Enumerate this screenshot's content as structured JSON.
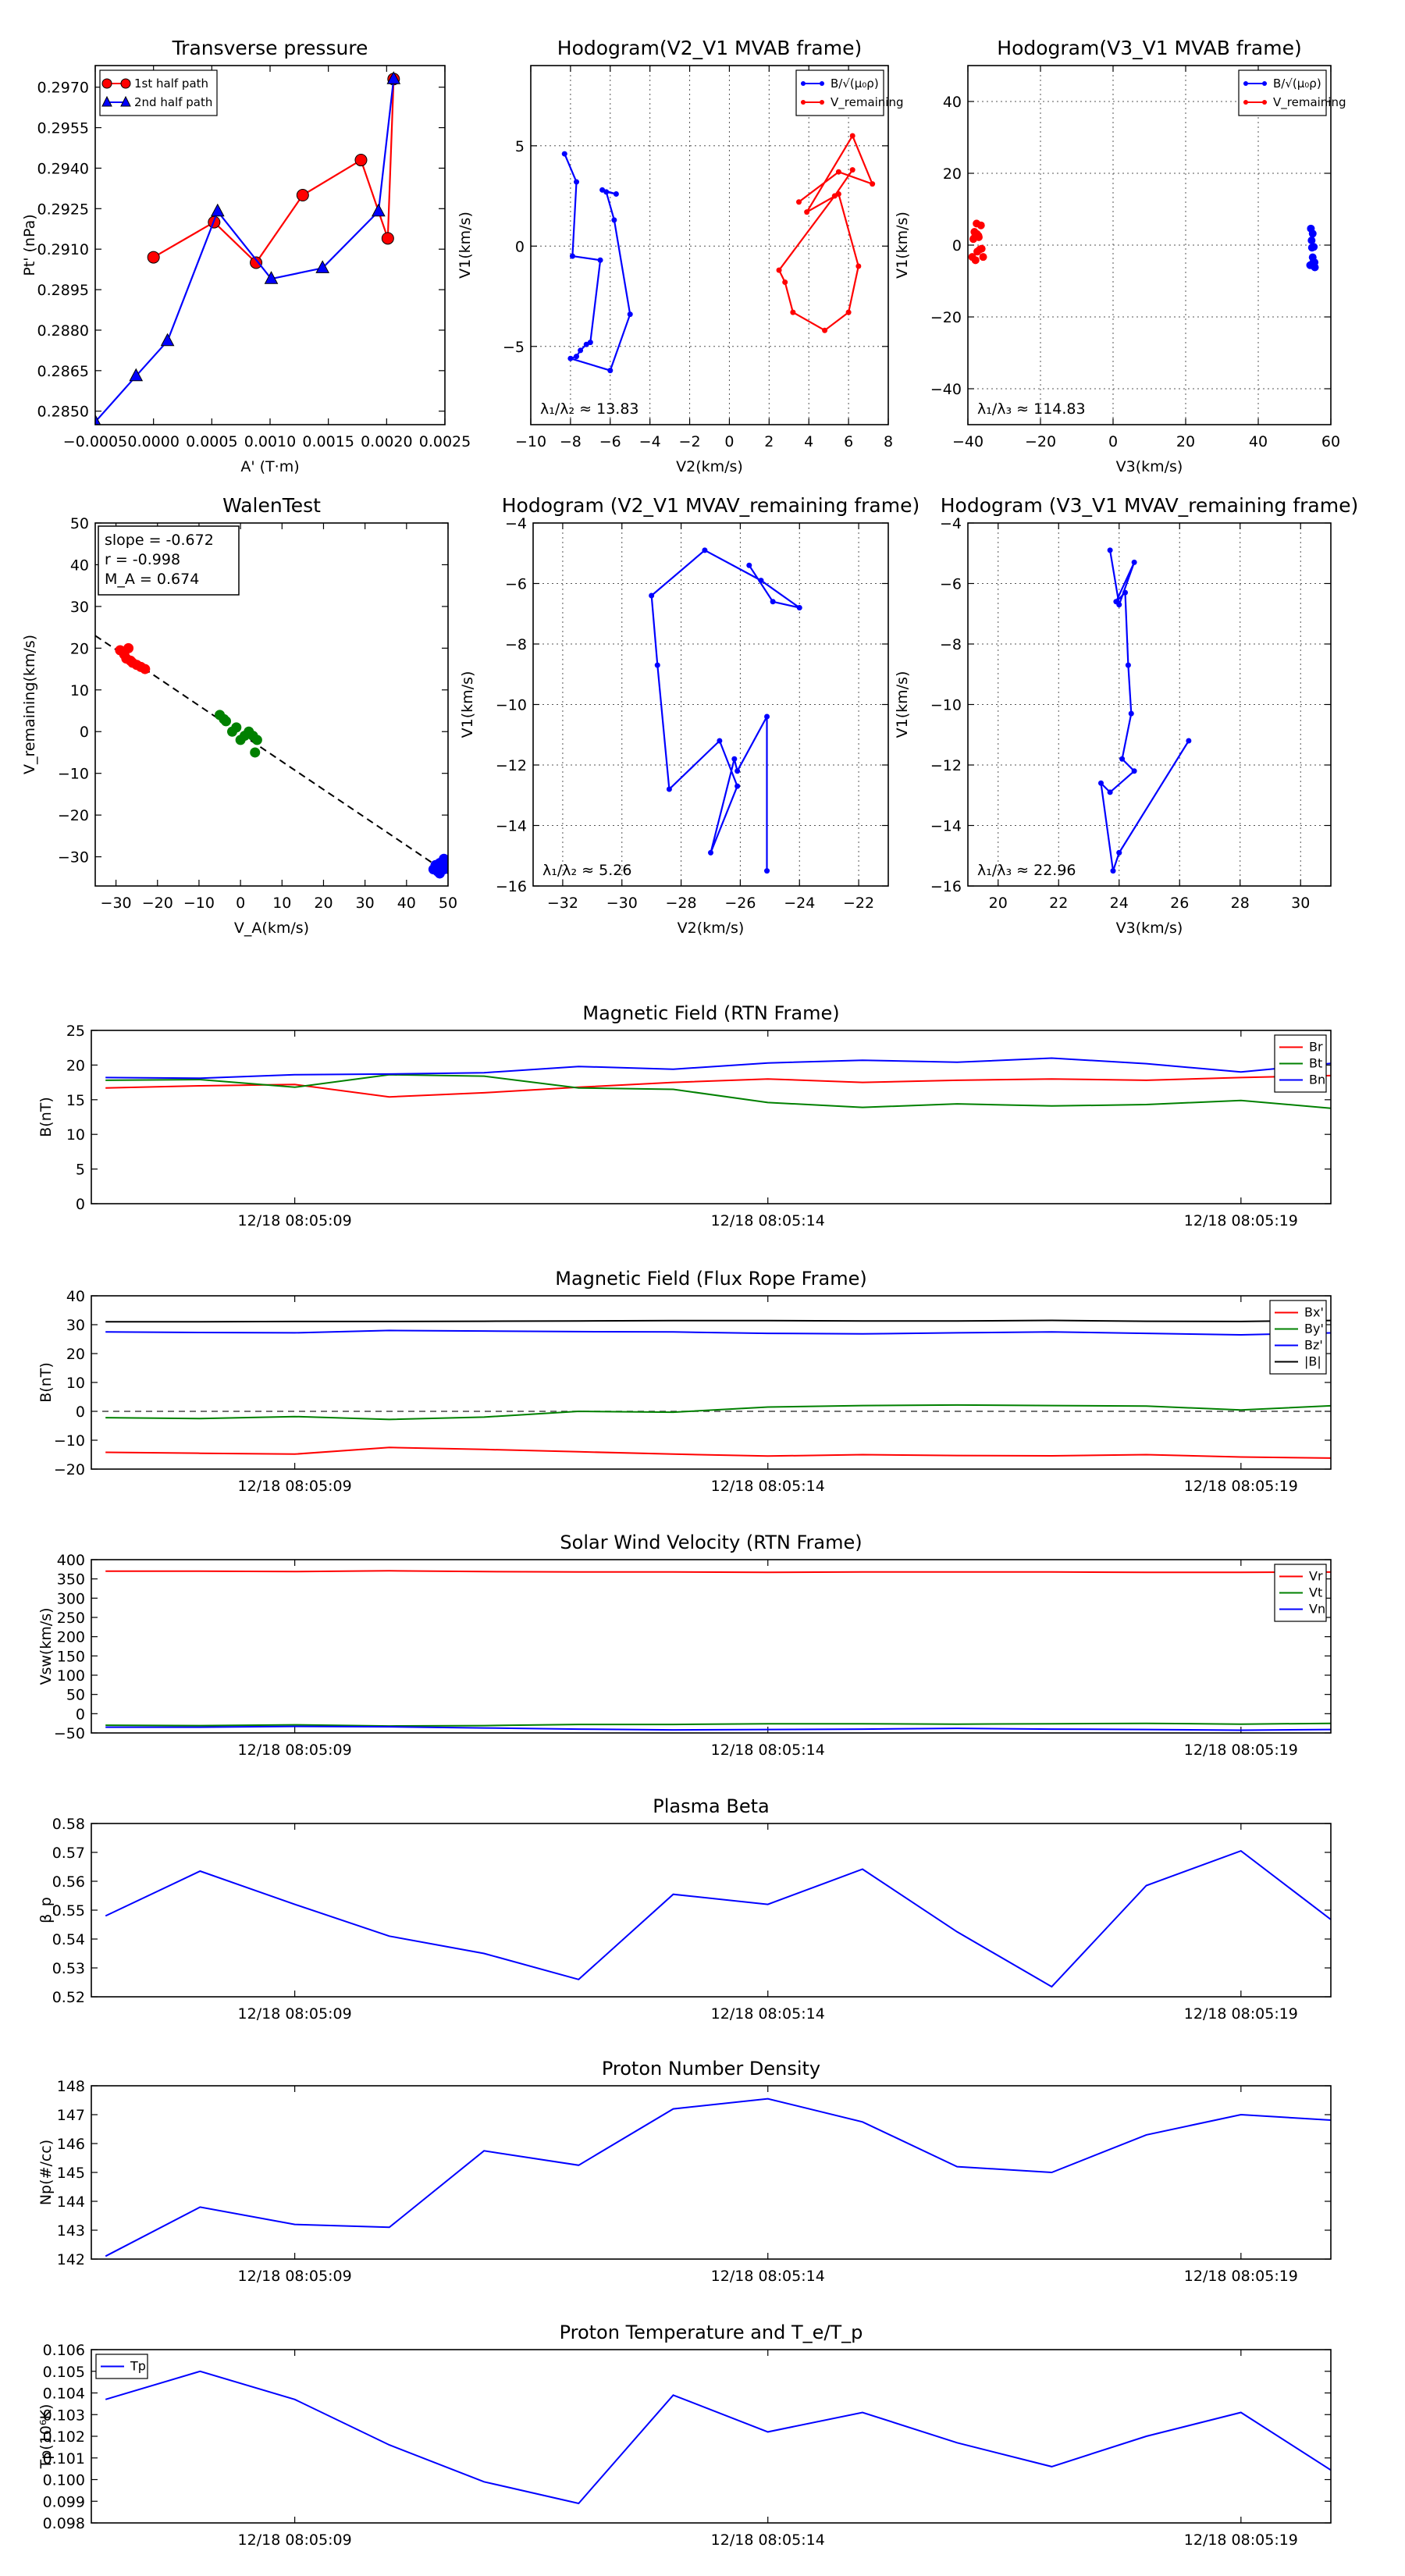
{
  "chart_data": [
    {
      "id": "p1",
      "type": "line",
      "title": "Transverse pressure",
      "xlabel": "A' (T·m)",
      "ylabel": "Pt' (nPa)",
      "xticks": [
        "−0.0005",
        "0.0000",
        "0.0005",
        "0.0010",
        "0.0015",
        "0.0020",
        "0.0025"
      ],
      "yticks": [
        "0.2850",
        "0.2865",
        "0.2880",
        "0.2895",
        "0.2910",
        "0.2925",
        "0.2940",
        "0.2955",
        "0.2970"
      ],
      "xlim": [
        -0.0005,
        0.0025
      ],
      "ylim": [
        0.2845,
        0.2978
      ],
      "legend": [
        "1st half path",
        "2nd half path"
      ],
      "series": [
        {
          "name": "1st half path",
          "color": "#ff0000",
          "marker": "circle",
          "x": [
            0.0,
            0.00052,
            0.00088,
            0.00128,
            0.00178,
            0.00201,
            0.00206
          ],
          "y": [
            0.2907,
            0.292,
            0.2905,
            0.293,
            0.2943,
            0.2914,
            0.2973
          ]
        },
        {
          "name": "2nd half path",
          "color": "#0000ff",
          "marker": "triangle",
          "x": [
            -0.0005,
            -0.00015,
            0.00012,
            0.00055,
            0.00101,
            0.00145,
            0.00193,
            0.00206
          ],
          "y": [
            0.2846,
            0.2863,
            0.2876,
            0.2924,
            0.2899,
            0.2903,
            0.2924,
            0.2973
          ]
        }
      ]
    },
    {
      "id": "p2",
      "type": "line",
      "title": "Hodogram(V2_V1 MVAB frame)",
      "xlabel": "V2(km/s)",
      "ylabel": "V1(km/s)",
      "xticks": [
        "−10",
        "−8",
        "−6",
        "−4",
        "−2",
        "0",
        "2",
        "4",
        "6",
        "8"
      ],
      "yticks": [
        "−5",
        "0",
        "5"
      ],
      "xlim": [
        -10,
        8
      ],
      "ylim": [
        -8.9,
        9
      ],
      "annotation": "λ₁/λ₂ ≈ 13.83",
      "legend": [
        "B/√(μ₀ρ)",
        "V_remaining"
      ],
      "series": [
        {
          "name": "B",
          "color": "#0000ff",
          "x": [
            -8.3,
            -7.7,
            -7.9,
            -6.5,
            -7.0,
            -7.2,
            -7.5,
            -7.7,
            -8.0,
            -6.0,
            -5.0,
            -5.8,
            -6.2,
            -5.7,
            -6.4
          ],
          "y": [
            4.6,
            3.2,
            -0.5,
            -0.7,
            -4.8,
            -4.9,
            -5.2,
            -5.5,
            -5.6,
            -6.2,
            -3.4,
            1.3,
            2.7,
            2.6,
            2.8
          ]
        },
        {
          "name": "V",
          "color": "#ff0000",
          "x": [
            3.5,
            5.5,
            7.2,
            6.2,
            3.9,
            5.5,
            6.5,
            6.0,
            4.8,
            3.2,
            2.8,
            2.5,
            5.3,
            6.2
          ],
          "y": [
            2.2,
            3.7,
            3.1,
            5.5,
            1.7,
            2.6,
            -1.0,
            -3.3,
            -4.2,
            -3.3,
            -1.8,
            -1.2,
            2.5,
            3.8
          ]
        }
      ]
    },
    {
      "id": "p3",
      "type": "scatter",
      "title": "Hodogram(V3_V1 MVAB frame)",
      "xlabel": "V3(km/s)",
      "ylabel": "V1(km/s)",
      "xticks": [
        "−40",
        "−20",
        "0",
        "20",
        "40",
        "60"
      ],
      "yticks": [
        "−40",
        "−20",
        "0",
        "20",
        "40"
      ],
      "xlim": [
        -40,
        60
      ],
      "ylim": [
        -50,
        50
      ],
      "annotation": "λ₁/λ₃ ≈ 114.83",
      "legend": [
        "B/√(μ₀ρ)",
        "V_remaining"
      ],
      "series": [
        {
          "name": "B",
          "color": "#0000ff",
          "x": [
            54.5,
            55.0,
            55.3,
            54.8,
            55.5,
            55.1,
            54.3,
            55.6,
            55.0,
            54.7
          ],
          "y": [
            4.6,
            3.2,
            -0.5,
            -0.7,
            -4.8,
            -4.9,
            -5.6,
            -6.2,
            -3.4,
            1.3
          ]
        },
        {
          "name": "V",
          "color": "#ff0000",
          "x": [
            -37.0,
            -38.2,
            -37.5,
            -36.4,
            -38.5,
            -37.1,
            -36.2,
            -35.8,
            -37.9,
            -38.8,
            -37.4,
            -36.7,
            -38.0,
            -37.6
          ],
          "y": [
            2.2,
            3.7,
            3.1,
            5.5,
            1.7,
            2.6,
            -1.0,
            -3.3,
            -4.2,
            -3.3,
            -1.8,
            -1.2,
            2.5,
            6.0
          ]
        }
      ]
    },
    {
      "id": "p4",
      "type": "scatter",
      "title": "WalenTest",
      "xlabel": "V_A(km/s)",
      "ylabel": "V_remaining(km/s)",
      "xticks": [
        "−30",
        "−20",
        "−10",
        "0",
        "10",
        "20",
        "30",
        "40",
        "50"
      ],
      "yticks": [
        "−30",
        "−20",
        "−10",
        "0",
        "10",
        "20",
        "30",
        "40",
        "50"
      ],
      "xlim": [
        -35,
        50
      ],
      "ylim": [
        -37,
        50
      ],
      "box": [
        "slope = -0.672",
        "r = -0.998",
        "M_A = 0.674"
      ],
      "fit_line": {
        "x": [
          -35,
          50
        ],
        "y": [
          23.0,
          -34.0
        ]
      },
      "series": [
        {
          "name": "red",
          "color": "#ff0000",
          "x": [
            -29,
            -28,
            -27.5,
            -26.5,
            -26,
            -25,
            -24,
            -23,
            -27
          ],
          "y": [
            19.5,
            18.5,
            17.5,
            17,
            16.5,
            16,
            15.5,
            15,
            20
          ]
        },
        {
          "name": "green",
          "color": "#008000",
          "x": [
            -5,
            -4,
            -3.5,
            -1,
            0,
            1,
            2,
            3,
            4,
            3.5,
            -2
          ],
          "y": [
            4,
            3,
            2.5,
            1,
            -2,
            -1,
            0,
            -1,
            -2,
            -5,
            0
          ]
        },
        {
          "name": "blue",
          "color": "#0000ff",
          "x": [
            46.5,
            47,
            47.5,
            48,
            48.5,
            49,
            49,
            49.5,
            48
          ],
          "y": [
            -33,
            -32,
            -33.5,
            -31.5,
            -32,
            -30.5,
            -33,
            -32,
            -34
          ]
        }
      ]
    },
    {
      "id": "p5",
      "type": "line",
      "title": "Hodogram (V2_V1 MVAV_remaining frame)",
      "xlabel": "V2(km/s)",
      "ylabel": "V1(km/s)",
      "xticks": [
        "−32",
        "−30",
        "−28",
        "−26",
        "−24",
        "−22"
      ],
      "yticks": [
        "−16",
        "−14",
        "−12",
        "−10",
        "−8",
        "−6",
        "−4"
      ],
      "xlim": [
        -33,
        -21
      ],
      "ylim": [
        -16,
        -4
      ],
      "annotation": "λ₁/λ₂ ≈ 5.26",
      "series": [
        {
          "name": "V",
          "color": "#0000ff",
          "x": [
            -25.7,
            -24.9,
            -24.0,
            -25.3,
            -27.2,
            -29.0,
            -28.8,
            -28.4,
            -26.7,
            -26.1,
            -27.0,
            -26.2,
            -26.1,
            -25.1,
            -25.1
          ],
          "y": [
            -5.4,
            -6.6,
            -6.8,
            -5.9,
            -4.9,
            -6.4,
            -8.7,
            -12.8,
            -11.2,
            -12.7,
            -14.9,
            -11.8,
            -12.2,
            -10.4,
            -15.5
          ]
        }
      ]
    },
    {
      "id": "p6",
      "type": "line",
      "title": "Hodogram (V3_V1 MVAV_remaining frame)",
      "xlabel": "V3(km/s)",
      "ylabel": "V1(km/s)",
      "xticks": [
        "20",
        "22",
        "24",
        "26",
        "28",
        "30"
      ],
      "yticks": [
        "−16",
        "−14",
        "−12",
        "−10",
        "−8",
        "−6",
        "−4"
      ],
      "xlim": [
        19,
        31
      ],
      "ylim": [
        -16,
        -4
      ],
      "annotation": "λ₁/λ₃ ≈ 22.96",
      "series": [
        {
          "name": "V",
          "color": "#0000ff",
          "x": [
            23.7,
            24.0,
            24.5,
            23.9,
            24.2,
            24.3,
            24.4,
            24.1,
            24.5,
            23.7,
            23.4,
            23.8,
            24.0,
            26.3,
            24.0
          ],
          "y": [
            -4.9,
            -6.7,
            -5.3,
            -6.6,
            -6.3,
            -8.7,
            -10.3,
            -11.8,
            -12.2,
            -12.9,
            -12.6,
            -15.5,
            -14.9,
            -11.2,
            -14.9
          ]
        }
      ]
    },
    {
      "id": "p7",
      "type": "line",
      "title": "Magnetic Field (RTN Frame)",
      "xlabel": "",
      "ylabel": "B(nT)",
      "xticks": [
        "12/18 08:05:09",
        "12/18 08:05:14",
        "12/18 08:05:19"
      ],
      "yticks": [
        "0",
        "5",
        "10",
        "15",
        "20",
        "25"
      ],
      "ylim": [
        0,
        25
      ],
      "x": [
        0,
        1,
        2,
        3,
        4,
        5,
        6,
        7,
        8,
        9,
        10,
        11,
        12,
        13
      ],
      "legend": [
        "Br",
        "Bt",
        "Bn"
      ],
      "series": [
        {
          "name": "Br",
          "color": "#ff0000",
          "values": [
            16.7,
            17.0,
            17.2,
            15.4,
            16.0,
            16.8,
            17.5,
            18.0,
            17.5,
            17.8,
            18.0,
            17.8,
            18.2,
            18.5
          ]
        },
        {
          "name": "Bt",
          "color": "#008000",
          "values": [
            17.8,
            17.9,
            16.8,
            18.6,
            18.4,
            16.7,
            16.5,
            14.6,
            13.9,
            14.4,
            14.1,
            14.3,
            14.9,
            13.7
          ]
        },
        {
          "name": "Bn",
          "color": "#0000ff",
          "values": [
            18.2,
            18.1,
            18.6,
            18.7,
            18.9,
            19.8,
            19.4,
            20.3,
            20.7,
            20.4,
            21.0,
            20.2,
            19.0,
            20.3
          ]
        }
      ]
    },
    {
      "id": "p8",
      "type": "line",
      "title": "Magnetic Field (Flux Rope Frame)",
      "xlabel": "",
      "ylabel": "B(nT)",
      "xticks": [
        "12/18 08:05:09",
        "12/18 08:05:14",
        "12/18 08:05:19"
      ],
      "yticks": [
        "−20",
        "−10",
        "0",
        "10",
        "20",
        "30",
        "40"
      ],
      "ylim": [
        -20,
        40
      ],
      "x": [
        0,
        1,
        2,
        3,
        4,
        5,
        6,
        7,
        8,
        9,
        10,
        11,
        12,
        13
      ],
      "legend": [
        "Bx'",
        "By'",
        "Bz'",
        "|B|"
      ],
      "series": [
        {
          "name": "Bx'",
          "color": "#ff0000",
          "values": [
            -14.2,
            -14.5,
            -14.8,
            -12.5,
            -13.2,
            -14.0,
            -14.8,
            -15.5,
            -15.0,
            -15.3,
            -15.4,
            -15.0,
            -15.8,
            -16.2
          ]
        },
        {
          "name": "By'",
          "color": "#008000",
          "values": [
            -2.2,
            -2.5,
            -1.8,
            -2.8,
            -2.0,
            0.0,
            -0.3,
            1.5,
            2.0,
            2.2,
            2.0,
            1.8,
            0.5,
            2.0
          ]
        },
        {
          "name": "Bz'",
          "color": "#0000ff",
          "values": [
            27.5,
            27.3,
            27.2,
            28.0,
            27.8,
            27.6,
            27.5,
            27.0,
            26.8,
            27.2,
            27.5,
            27.0,
            26.5,
            27.2
          ]
        },
        {
          "name": "|B|",
          "color": "#000000",
          "values": [
            31.0,
            31.0,
            31.1,
            31.1,
            31.2,
            31.3,
            31.4,
            31.4,
            31.3,
            31.3,
            31.5,
            31.2,
            31.1,
            31.5
          ]
        }
      ]
    },
    {
      "id": "p9",
      "type": "line",
      "title": "Solar Wind Velocity (RTN Frame)",
      "xlabel": "",
      "ylabel": "Vsw(km/s)",
      "xticks": [
        "12/18 08:05:09",
        "12/18 08:05:14",
        "12/18 08:05:19"
      ],
      "yticks": [
        "−50",
        "0",
        "50",
        "100",
        "150",
        "200",
        "250",
        "300",
        "350",
        "400"
      ],
      "ylim": [
        -50,
        400
      ],
      "x": [
        0,
        1,
        2,
        3,
        4,
        5,
        6,
        7,
        8,
        9,
        10,
        11,
        12,
        13
      ],
      "legend": [
        "Vr",
        "Vt",
        "Vn"
      ],
      "series": [
        {
          "name": "Vr",
          "color": "#ff0000",
          "values": [
            370,
            370,
            369,
            371,
            369,
            368,
            368,
            367,
            368,
            368,
            368,
            367,
            367,
            368
          ]
        },
        {
          "name": "Vt",
          "color": "#008000",
          "values": [
            -30,
            -31,
            -29,
            -32,
            -31,
            -28,
            -28,
            -26,
            -26,
            -27,
            -26,
            -25,
            -27,
            -25
          ]
        },
        {
          "name": "Vn",
          "color": "#0000ff",
          "values": [
            -35,
            -35,
            -33,
            -34,
            -37,
            -40,
            -42,
            -41,
            -40,
            -38,
            -40,
            -41,
            -43,
            -41
          ]
        }
      ]
    },
    {
      "id": "p10",
      "type": "line",
      "title": "Plasma Beta",
      "xlabel": "",
      "ylabel": "β_p",
      "xticks": [
        "12/18 08:05:09",
        "12/18 08:05:14",
        "12/18 08:05:19"
      ],
      "yticks": [
        "0.52",
        "0.53",
        "0.54",
        "0.55",
        "0.56",
        "0.57",
        "0.58"
      ],
      "ylim": [
        0.52,
        0.58
      ],
      "x": [
        0,
        1,
        2,
        3,
        4,
        5,
        6,
        7,
        8,
        9,
        10,
        11,
        12,
        13
      ],
      "series": [
        {
          "name": "beta",
          "color": "#0000ff",
          "values": [
            0.548,
            0.5635,
            0.552,
            0.541,
            0.535,
            0.526,
            0.5555,
            0.552,
            0.5642,
            0.5425,
            0.5235,
            0.5585,
            0.5705,
            0.5455
          ]
        }
      ]
    },
    {
      "id": "p11",
      "type": "line",
      "title": "Proton Number Density",
      "xlabel": "",
      "ylabel": "Np(#/cc)",
      "xticks": [
        "12/18 08:05:09",
        "12/18 08:05:14",
        "12/18 08:05:19"
      ],
      "yticks": [
        "142",
        "143",
        "144",
        "145",
        "146",
        "147",
        "148"
      ],
      "ylim": [
        142,
        148
      ],
      "x": [
        0,
        1,
        2,
        3,
        4,
        5,
        6,
        7,
        8,
        9,
        10,
        11,
        12,
        13
      ],
      "series": [
        {
          "name": "Np",
          "color": "#0000ff",
          "values": [
            142.1,
            143.8,
            143.2,
            143.1,
            145.75,
            145.25,
            147.2,
            147.55,
            146.75,
            145.2,
            145.0,
            146.3,
            147.0,
            146.8
          ]
        }
      ]
    },
    {
      "id": "p12",
      "type": "line",
      "title": "Proton Temperature and T_e/T_p",
      "xlabel": "",
      "ylabel": "Tp(10⁶K)",
      "xticks": [
        "12/18 08:05:09",
        "12/18 08:05:14",
        "12/18 08:05:19"
      ],
      "yticks": [
        "0.098",
        "0.099",
        "0.100",
        "0.101",
        "0.102",
        "0.103",
        "0.104",
        "0.105",
        "0.106"
      ],
      "ylim": [
        0.098,
        0.106
      ],
      "x": [
        0,
        1,
        2,
        3,
        4,
        5,
        6,
        7,
        8,
        9,
        10,
        11,
        12,
        13
      ],
      "legend": [
        "Tp"
      ],
      "series": [
        {
          "name": "Tp",
          "color": "#0000ff",
          "values": [
            0.1037,
            0.105,
            0.1037,
            0.1016,
            0.0999,
            0.0989,
            0.1039,
            0.1022,
            0.1031,
            0.1017,
            0.1006,
            0.102,
            0.1031,
            0.1003
          ]
        }
      ]
    }
  ]
}
